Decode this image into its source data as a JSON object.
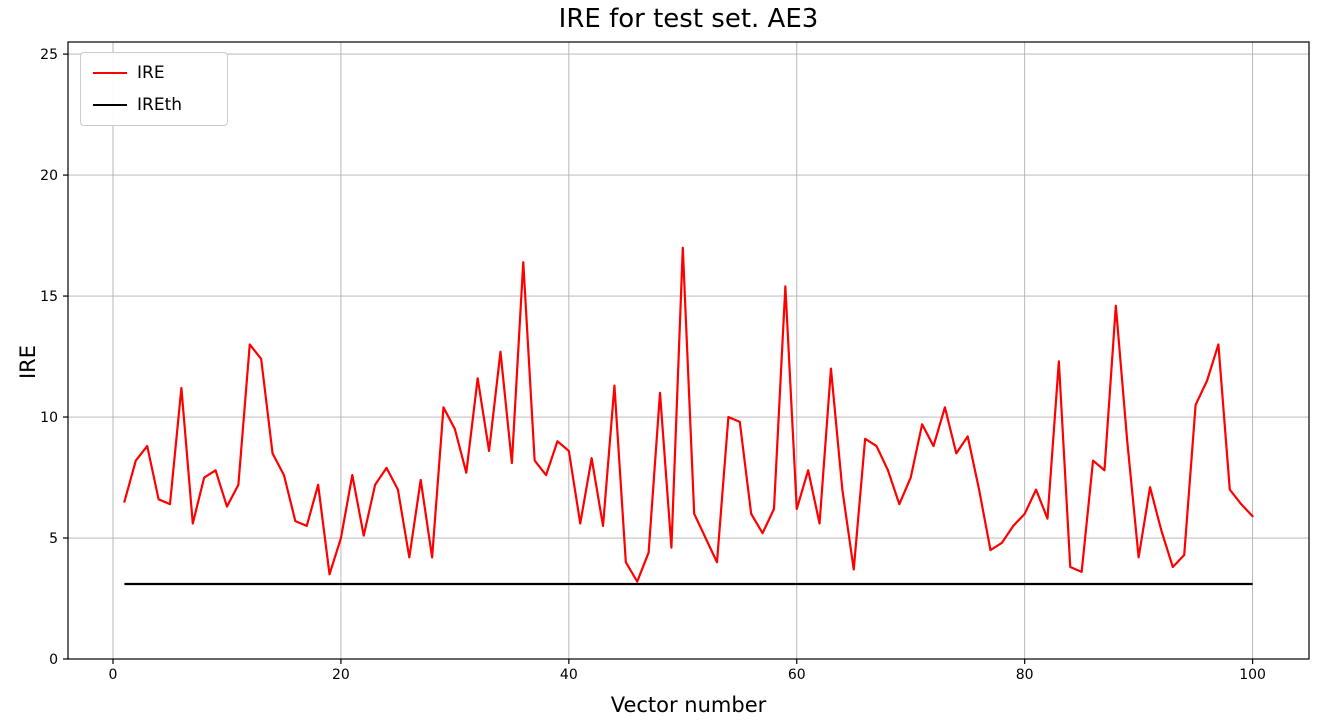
{
  "chart_data": {
    "type": "line",
    "title": "IRE for test set. AE3",
    "xlabel": "Vector number",
    "ylabel": "IRE",
    "xlim": [
      -3.95,
      104.95
    ],
    "ylim": [
      0,
      25.5
    ],
    "xticks": [
      0,
      20,
      40,
      60,
      80,
      100
    ],
    "yticks": [
      0,
      5,
      10,
      15,
      20,
      25
    ],
    "grid": true,
    "grid_color": "#b0b0b0",
    "legend_position": "upper left",
    "series": [
      {
        "name": "IRE",
        "type": "line",
        "color": "#ff0000",
        "x_start": 1,
        "values": [
          6.5,
          8.2,
          8.8,
          6.6,
          6.4,
          11.2,
          5.6,
          7.5,
          7.8,
          6.3,
          7.2,
          13.0,
          12.4,
          8.5,
          7.6,
          5.7,
          5.5,
          7.2,
          3.5,
          5.0,
          7.6,
          5.1,
          7.2,
          7.9,
          7.0,
          4.2,
          7.4,
          4.2,
          10.4,
          9.5,
          7.7,
          11.6,
          8.6,
          12.7,
          8.1,
          16.4,
          8.2,
          7.6,
          9.0,
          8.6,
          5.6,
          8.3,
          5.5,
          11.3,
          4.0,
          3.2,
          4.4,
          11.0,
          4.6,
          17.0,
          6.0,
          5.0,
          4.0,
          10.0,
          9.8,
          6.0,
          5.2,
          6.2,
          15.4,
          6.2,
          7.8,
          5.6,
          12.0,
          7.0,
          3.7,
          9.1,
          8.8,
          7.8,
          6.4,
          7.5,
          9.7,
          8.8,
          10.4,
          8.5,
          9.2,
          7.0,
          4.5,
          4.8,
          5.5,
          6.0,
          7.0,
          5.8,
          12.3,
          3.8,
          3.6,
          8.2,
          7.8,
          14.6,
          9.0,
          4.2,
          7.1,
          5.3,
          3.8,
          4.3,
          10.5,
          11.5,
          13.0,
          7.0,
          6.4,
          5.9
        ]
      },
      {
        "name": "IREth",
        "type": "threshold",
        "color": "#000000",
        "value": 3.1,
        "x_range": [
          1,
          100
        ]
      }
    ]
  }
}
